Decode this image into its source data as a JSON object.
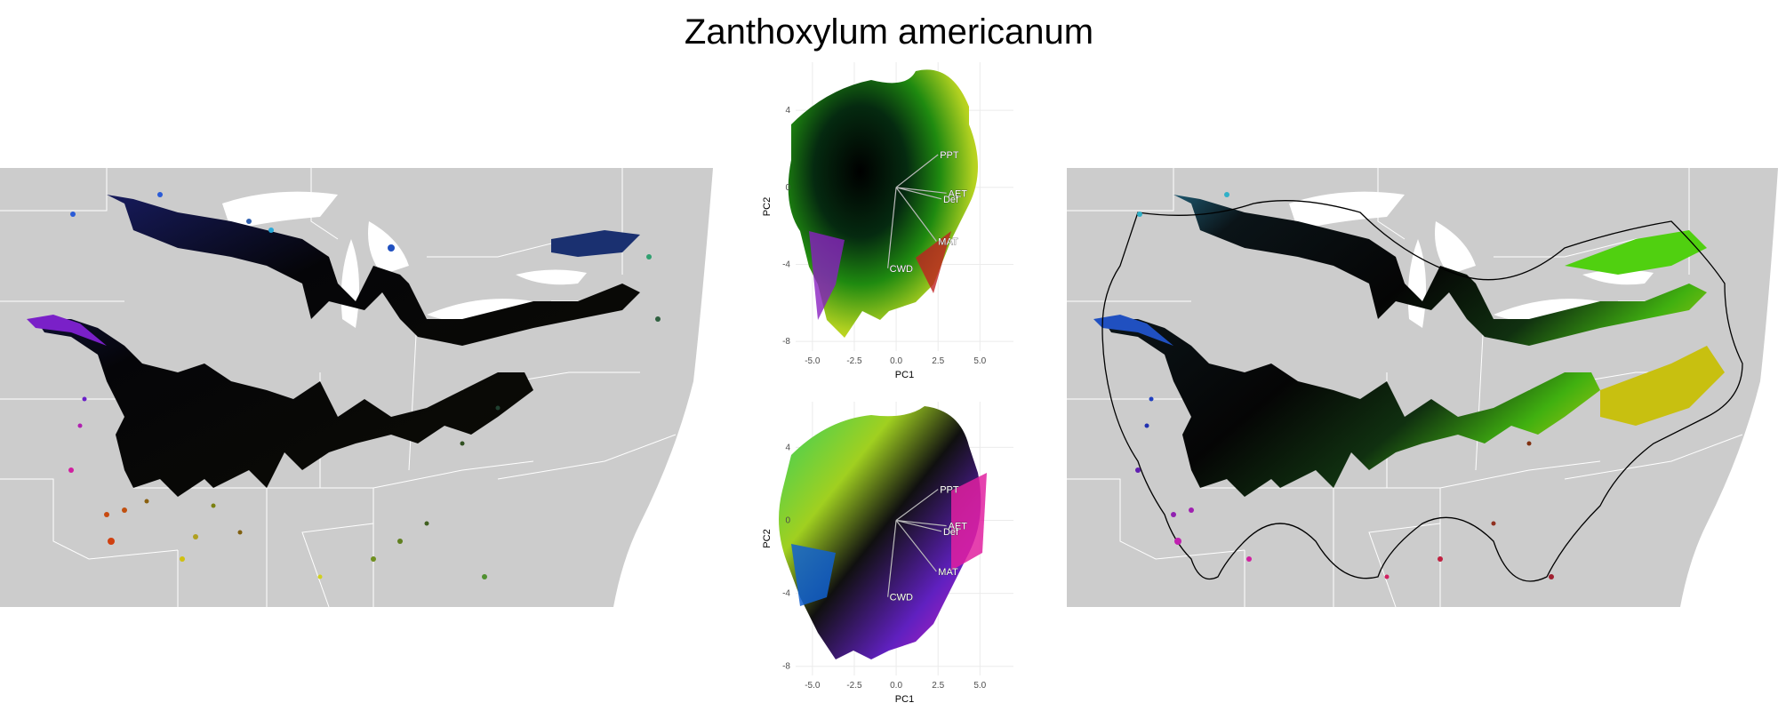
{
  "title": "Zanthoxylum americanum",
  "pca_axes": {
    "xlabel": "PC1",
    "ylabel": "PC2",
    "xticks": [
      "-5.0",
      "-2.5",
      "0.0",
      "2.5",
      "5.0"
    ],
    "yticks": [
      "4",
      "0",
      "-4",
      "-8"
    ]
  },
  "variable_labels": [
    "PPT",
    "AET",
    "Def",
    "MAT",
    "CWD"
  ],
  "colors": {
    "map_background": "#cccccc",
    "range_fill": "#0a0a0a",
    "boundary_lines": "#ffffff",
    "hull_line": "#000000"
  },
  "chart_data": [
    {
      "type": "scatter",
      "title": "",
      "xlabel": "PC1",
      "ylabel": "PC2",
      "xlim": [
        -6,
        7
      ],
      "ylim": [
        -8.5,
        6.5
      ],
      "grid": true,
      "loadings": [
        {
          "name": "PPT",
          "x": 2.5,
          "y": 1.7
        },
        {
          "name": "AET",
          "x": 3.0,
          "y": -0.3
        },
        {
          "name": "Def",
          "x": 2.7,
          "y": -0.6
        },
        {
          "name": "MAT",
          "x": 2.4,
          "y": -2.8
        },
        {
          "name": "CWD",
          "x": -0.5,
          "y": -4.2
        }
      ]
    },
    {
      "type": "scatter",
      "title": "",
      "xlabel": "PC1",
      "ylabel": "PC2",
      "xlim": [
        -6,
        7
      ],
      "ylim": [
        -8.5,
        6.5
      ],
      "grid": true,
      "loadings": [
        {
          "name": "PPT",
          "x": 2.5,
          "y": 1.7
        },
        {
          "name": "AET",
          "x": 3.0,
          "y": -0.3
        },
        {
          "name": "Def",
          "x": 2.7,
          "y": -0.6
        },
        {
          "name": "MAT",
          "x": 2.4,
          "y": -2.8
        },
        {
          "name": "CWD",
          "x": -0.5,
          "y": -4.2
        }
      ]
    }
  ]
}
